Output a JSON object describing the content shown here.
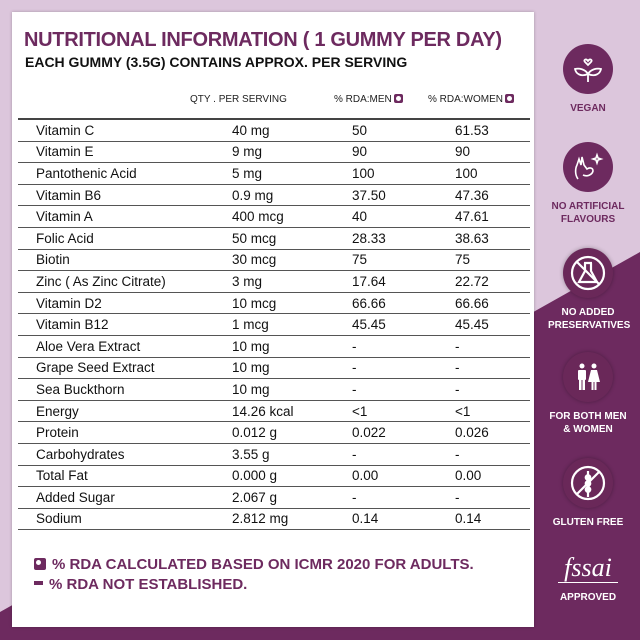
{
  "header": {
    "title": "NUTRITIONAL INFORMATION ( 1 GUMMY PER DAY)",
    "subtitle": "EACH GUMMY (3.5G) CONTAINS APPROX. PER SERVING"
  },
  "table": {
    "columns": [
      "",
      "QTY . PER SERVING",
      "% RDA:MEN",
      "% RDA:WOMEN"
    ],
    "rows": [
      [
        "Vitamin C",
        "40 mg",
        "50",
        "61.53"
      ],
      [
        "Vitamin E",
        "9 mg",
        "90",
        "90"
      ],
      [
        "Pantothenic Acid",
        "5 mg",
        "100",
        "100"
      ],
      [
        "Vitamin B6",
        "0.9 mg",
        "37.50",
        "47.36"
      ],
      [
        "Vitamin A",
        "400 mcg",
        "40",
        "47.61"
      ],
      [
        "Folic Acid",
        "50 mcg",
        "28.33",
        "38.63"
      ],
      [
        "Biotin",
        "30 mcg",
        "75",
        "75"
      ],
      [
        "Zinc ( As Zinc Citrate)",
        "3 mg",
        "17.64",
        "22.72"
      ],
      [
        "Vitamin D2",
        "10 mcg",
        "66.66",
        "66.66"
      ],
      [
        "Vitamin B12",
        "1 mcg",
        "45.45",
        "45.45"
      ],
      [
        "Aloe Vera Extract",
        "10 mg",
        "-",
        "-"
      ],
      [
        "Grape Seed Extract",
        "10 mg",
        "-",
        "-"
      ],
      [
        "Sea Buckthorn",
        "10 mg",
        "-",
        "-"
      ],
      [
        "Energy",
        "14.26 kcal",
        "<1",
        "<1"
      ],
      [
        "Protein",
        "0.012 g",
        "0.022",
        "0.026"
      ],
      [
        "Carbohydrates",
        "3.55 g",
        "-",
        "-"
      ],
      [
        "Total Fat",
        "0.000 g",
        "0.00",
        "0.00"
      ],
      [
        "Added Sugar",
        "2.067 g",
        "-",
        "-"
      ],
      [
        "Sodium",
        "2.812 mg",
        "0.14",
        "0.14"
      ]
    ]
  },
  "notes": {
    "rda_note": "% RDA CALCULATED BASED ON ICMR 2020 FOR ADULTS.",
    "not_established_note": "% RDA NOT ESTABLISHED."
  },
  "badges": [
    {
      "label": "VEGAN",
      "icon": "vegan-leaf-heart-icon"
    },
    {
      "label": "NO ARTIFICIAL FLAVOURS",
      "icon": "ok-hand-sparkle-icon"
    },
    {
      "label": "NO ADDED PRESERVATIVES",
      "icon": "no-flask-icon"
    },
    {
      "label": "FOR BOTH MEN & WOMEN",
      "icon": "man-woman-icon"
    },
    {
      "label": "GLUTEN FREE",
      "icon": "no-wheat-icon"
    },
    {
      "label": "APPROVED",
      "logo": "fssai",
      "icon": "fssai-logo"
    }
  ],
  "colors": {
    "brand": "#6d2a5f",
    "background": "#dcc6dc",
    "card": "#ffffff"
  }
}
